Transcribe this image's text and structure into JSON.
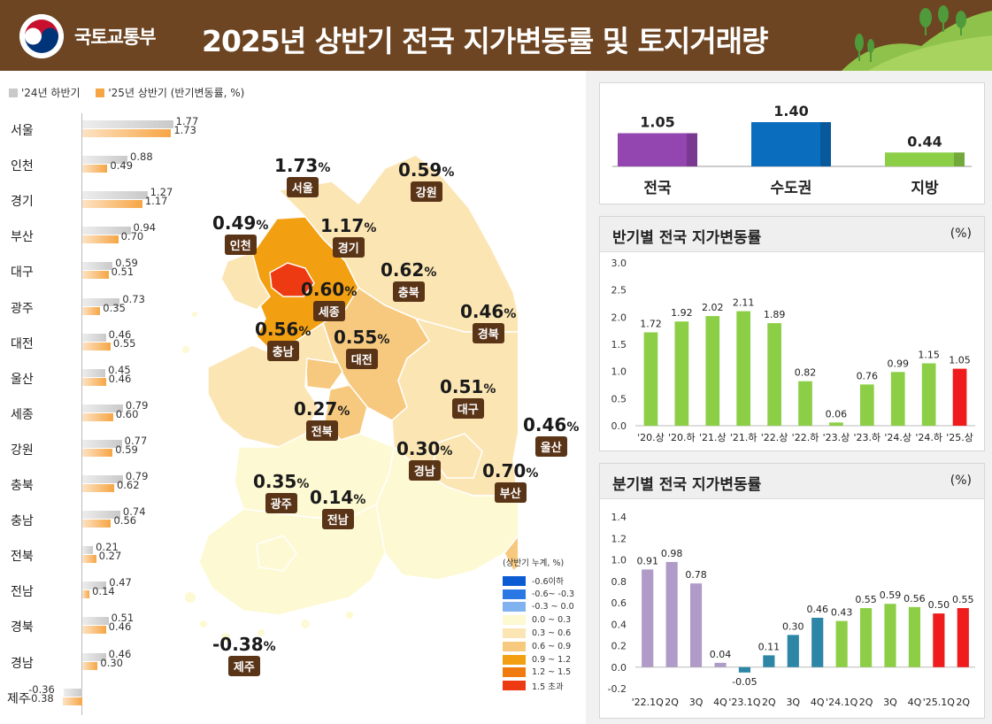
{
  "header": {
    "logo_text": "국토교통부",
    "title": "2025년 상반기 전국 지가변동률 및 토지거래량"
  },
  "legend_top": {
    "prev_label": "'24년 하반기",
    "cur_label": "'25년 상반기 (반기변동률, %)",
    "prev_color": "#c9c9c9",
    "cur_color": "#f6a544"
  },
  "chart_data": [
    {
      "type": "bar",
      "orientation": "horizontal",
      "categories": [
        "서울",
        "인천",
        "경기",
        "부산",
        "대구",
        "광주",
        "대전",
        "울산",
        "세종",
        "강원",
        "충북",
        "충남",
        "전북",
        "전남",
        "경북",
        "경남",
        "제주"
      ],
      "series": [
        {
          "name": "'24년 하반기",
          "values": [
            1.77,
            0.88,
            1.27,
            0.94,
            0.59,
            0.73,
            0.46,
            0.45,
            0.79,
            0.77,
            0.79,
            0.74,
            0.21,
            0.47,
            0.51,
            0.46,
            -0.36
          ]
        },
        {
          "name": "'25년 상반기 (반기변동률, %)",
          "values": [
            1.73,
            0.49,
            1.17,
            0.7,
            0.51,
            0.35,
            0.55,
            0.46,
            0.6,
            0.59,
            0.62,
            0.56,
            0.27,
            0.14,
            0.46,
            0.3,
            -0.38
          ]
        }
      ]
    },
    {
      "type": "bar",
      "categories": [
        "전국",
        "수도권",
        "지방"
      ],
      "values": [
        1.05,
        1.4,
        0.44
      ],
      "value_labels": [
        "1.05",
        "1.40",
        "0.44"
      ],
      "colors": [
        "#9446b0",
        "#0a6dbd",
        "#8ccf47"
      ],
      "ylim": [
        0,
        1.6
      ]
    },
    {
      "type": "bar",
      "title": "반기별 전국 지가변동률",
      "unit": "(%)",
      "categories": [
        "'20.상",
        "'20.하",
        "'21.상",
        "'21.하",
        "'22.상",
        "'22.하",
        "'23.상",
        "'23.하",
        "'24.상",
        "'24.하",
        "'25.상"
      ],
      "values": [
        1.72,
        1.92,
        2.02,
        2.11,
        1.89,
        0.82,
        0.06,
        0.76,
        0.99,
        1.15,
        1.05
      ],
      "value_labels": [
        "1.72",
        "1.92",
        "2.02",
        "2.11",
        "1.89",
        "0.82",
        "0.06",
        "0.76",
        "0.99",
        "1.15",
        "1.05"
      ],
      "ylim": [
        0,
        3.0
      ],
      "yticks": [
        "0.0",
        "0.5",
        "1.0",
        "1.5",
        "2.0",
        "2.5",
        "3.0"
      ],
      "colors": [
        "#8ccf47",
        "#8ccf47",
        "#8ccf47",
        "#8ccf47",
        "#8ccf47",
        "#8ccf47",
        "#8ccf47",
        "#8ccf47",
        "#8ccf47",
        "#8ccf47",
        "#ee1c1c"
      ]
    },
    {
      "type": "bar",
      "title": "분기별 전국 지가변동률",
      "unit": "(%)",
      "categories": [
        "'22.1Q",
        "2Q",
        "3Q",
        "4Q",
        "'23.1Q",
        "2Q",
        "3Q",
        "4Q",
        "'24.1Q",
        "2Q",
        "3Q",
        "4Q",
        "'25.1Q",
        "2Q"
      ],
      "values": [
        0.91,
        0.98,
        0.78,
        0.04,
        -0.05,
        0.11,
        0.3,
        0.46,
        0.43,
        0.55,
        0.59,
        0.56,
        0.5,
        0.55
      ],
      "value_labels": [
        "0.91",
        "0.98",
        "0.78",
        "0.04",
        "-0.05",
        "0.11",
        "0.30",
        "0.46",
        "0.43",
        "0.55",
        "0.59",
        "0.56",
        "0.50",
        "0.55"
      ],
      "ylim": [
        -0.2,
        1.4
      ],
      "yticks": [
        "-0.2",
        "0.0",
        "0.2",
        "0.4",
        "0.6",
        "0.8",
        "1.0",
        "1.2",
        "1.4"
      ],
      "colors": [
        "#b09bc8",
        "#b09bc8",
        "#b09bc8",
        "#b09bc8",
        "#2e86a6",
        "#2e86a6",
        "#2e86a6",
        "#2e86a6",
        "#8ccf47",
        "#8ccf47",
        "#8ccf47",
        "#8ccf47",
        "#ee1c1c",
        "#ee1c1c"
      ]
    }
  ],
  "map": {
    "regions": [
      {
        "name": "서울",
        "value": "1.73",
        "pct": "%"
      },
      {
        "name": "인천",
        "value": "0.49",
        "pct": "%"
      },
      {
        "name": "경기",
        "value": "1.17",
        "pct": "%"
      },
      {
        "name": "강원",
        "value": "0.59",
        "pct": "%"
      },
      {
        "name": "충북",
        "value": "0.62",
        "pct": "%"
      },
      {
        "name": "세종",
        "value": "0.60",
        "pct": "%"
      },
      {
        "name": "충남",
        "value": "0.56",
        "pct": "%"
      },
      {
        "name": "대전",
        "value": "0.55",
        "pct": "%"
      },
      {
        "name": "경북",
        "value": "0.46",
        "pct": "%"
      },
      {
        "name": "대구",
        "value": "0.51",
        "pct": "%"
      },
      {
        "name": "전북",
        "value": "0.27",
        "pct": "%"
      },
      {
        "name": "경남",
        "value": "0.30",
        "pct": "%"
      },
      {
        "name": "울산",
        "value": "0.46",
        "pct": "%"
      },
      {
        "name": "부산",
        "value": "0.70",
        "pct": "%"
      },
      {
        "name": "광주",
        "value": "0.35",
        "pct": "%"
      },
      {
        "name": "전남",
        "value": "0.14",
        "pct": "%"
      },
      {
        "name": "제주",
        "value": "-0.38",
        "pct": "%"
      }
    ],
    "legend_title": "(상반기 누계, %)",
    "legend": [
      {
        "label": "-0.6이하",
        "color": "#0b5bd3"
      },
      {
        "label": "-0.6~ -0.3",
        "color": "#2a78e4"
      },
      {
        "label": "-0.3 ~ 0.0",
        "color": "#7fb2ee"
      },
      {
        "label": "0.0 ~ 0.3",
        "color": "#fdf9d2"
      },
      {
        "label": "0.3 ~ 0.6",
        "color": "#fbe5b3"
      },
      {
        "label": "0.6 ~ 0.9",
        "color": "#f7c97e"
      },
      {
        "label": "0.9 ~ 1.2",
        "color": "#f2a011"
      },
      {
        "label": "1.2 ~ 1.5",
        "color": "#f07c10"
      },
      {
        "label": "1.5 초과",
        "color": "#ee3a12"
      }
    ]
  }
}
